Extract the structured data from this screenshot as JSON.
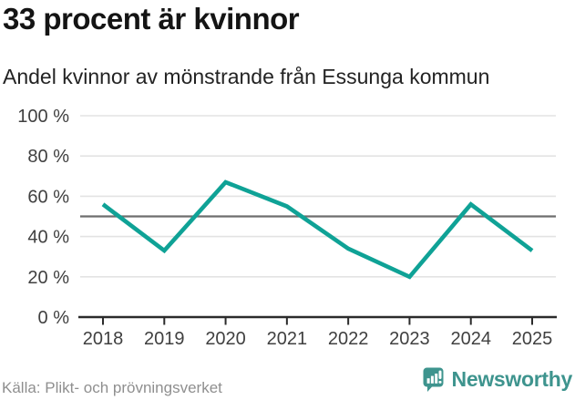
{
  "chart_data": {
    "type": "line",
    "title": "33 procent är kvinnor",
    "subtitle": "Andel kvinnor av mönstrande från Essunga kommun",
    "x": [
      2018,
      2019,
      2020,
      2021,
      2022,
      2023,
      2024,
      2025
    ],
    "values": [
      56,
      33,
      67,
      55,
      34,
      20,
      56,
      33
    ],
    "unit": "%",
    "ylim": [
      0,
      100
    ],
    "y_ticks": [
      0,
      20,
      40,
      60,
      80,
      100
    ],
    "y_tick_labels": [
      "0 %",
      "20 %",
      "40 %",
      "60 %",
      "80 %",
      "100 %"
    ],
    "reference_line": 50,
    "grid": true,
    "legend": "none",
    "source": "Källa: Plikt- och prövningsverket",
    "colors": {
      "line": "#0fa296",
      "grid": "#e3e3e3",
      "reference": "#6e6e6e",
      "axis": "#2b2b2b",
      "tick_text": "#404040"
    }
  },
  "footer": {
    "brand": "Newsworthy",
    "brand_color": "#3e948e"
  }
}
